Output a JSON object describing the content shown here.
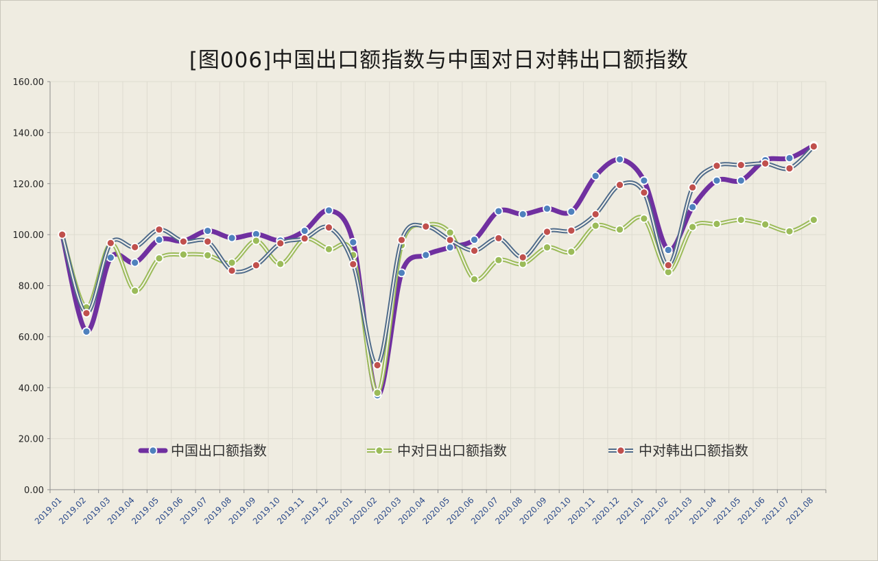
{
  "chart_data": {
    "type": "line",
    "title": "[图006]中国出口额指数与中国对日对韩出口额指数",
    "xlabel": "",
    "ylabel": "",
    "ylim": [
      0,
      160
    ],
    "yticks": [
      "0.00",
      "20.00",
      "40.00",
      "60.00",
      "80.00",
      "100.00",
      "120.00",
      "140.00",
      "160.00"
    ],
    "grid": true,
    "legend_position": "inside-bottom",
    "categories": [
      "2019.01",
      "2019.02",
      "2019.03",
      "2019.04",
      "2019.05",
      "2019.06",
      "2019.07",
      "2019.08",
      "2019.09",
      "2019.10",
      "2019.11",
      "2019.12",
      "2020.01",
      "2020.02",
      "2020.03",
      "2020.04",
      "2020.05",
      "2020.06",
      "2020.07",
      "2020.08",
      "2020.09",
      "2020.10",
      "2020.11",
      "2020.12",
      "2021.01",
      "2021.02",
      "2021.03",
      "2021.04",
      "2021.05",
      "2021.06",
      "2021.07",
      "2021.08"
    ],
    "series": [
      {
        "name": "中国出口额指数",
        "color": "#7030a0",
        "marker": "#4f81bd",
        "style": "thick",
        "values": [
          100.0,
          62.0,
          91.0,
          89.0,
          98.0,
          97.5,
          101.5,
          98.7,
          100.2,
          97.7,
          101.5,
          109.5,
          97.0,
          37.0,
          85.0,
          92.0,
          95.0,
          98.0,
          109.2,
          108.0,
          110.2,
          109.0,
          123.0,
          129.5,
          121.2,
          94.0,
          110.8,
          121.2,
          121.2,
          129.2,
          130.0,
          135.0
        ]
      },
      {
        "name": "中对日出口额指数",
        "color": "#9bbb59",
        "marker": "#9bbb59",
        "style": "double",
        "values": [
          100.0,
          71.5,
          96.5,
          78.0,
          90.7,
          92.2,
          91.9,
          89.0,
          97.6,
          88.5,
          98.3,
          94.3,
          92.0,
          38.0,
          95.8,
          103.8,
          100.8,
          82.5,
          90.0,
          88.5,
          95.0,
          93.3,
          103.5,
          102.0,
          106.3,
          85.3,
          103.0,
          104.2,
          105.8,
          104.0,
          101.3,
          105.8
        ]
      },
      {
        "name": "中对韩出口额指数",
        "color": "#4f6b8a",
        "marker": "#c0504d",
        "style": "double",
        "values": [
          100.0,
          69.2,
          96.7,
          95.1,
          102.0,
          97.3,
          97.3,
          85.9,
          88.0,
          96.6,
          98.5,
          102.8,
          88.4,
          48.8,
          97.9,
          103.2,
          97.9,
          93.7,
          98.6,
          91.1,
          101.1,
          101.6,
          108.0,
          119.5,
          116.5,
          88.0,
          118.5,
          127.0,
          127.3,
          127.9,
          126.0,
          134.6
        ]
      }
    ]
  }
}
